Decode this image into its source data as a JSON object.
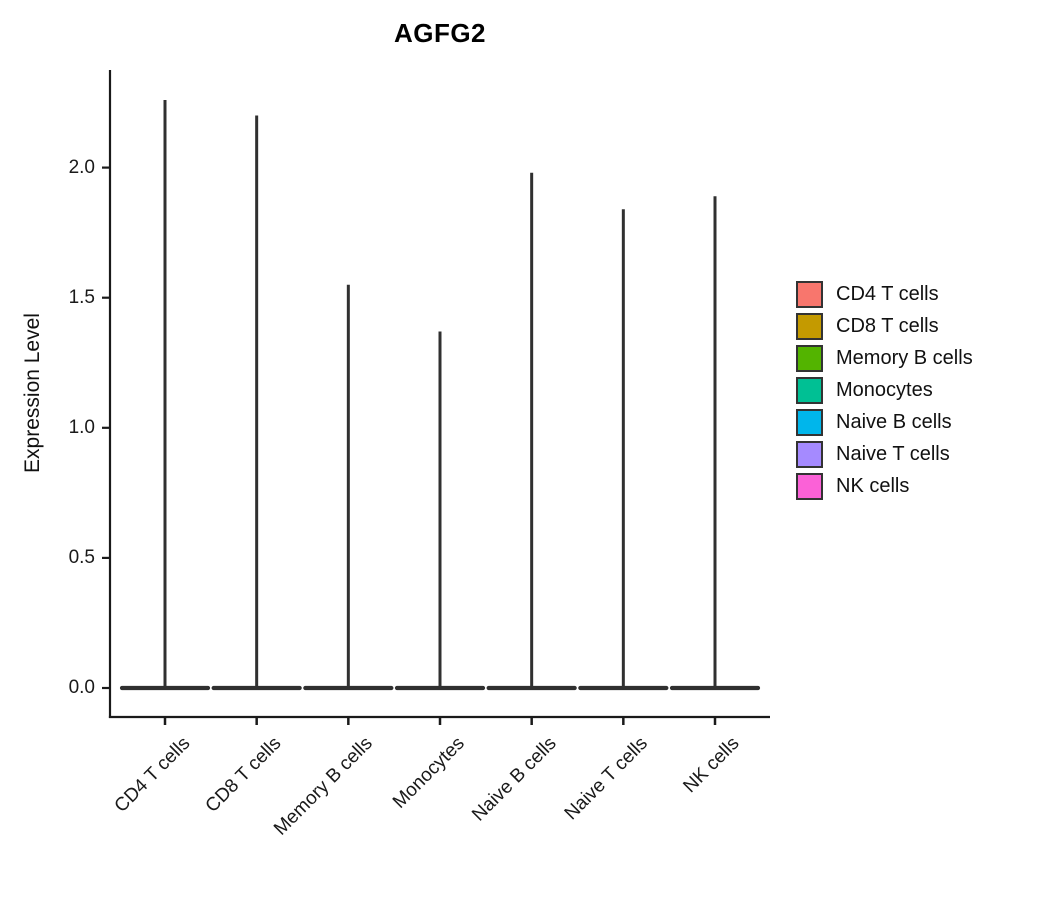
{
  "chart_data": {
    "type": "violin",
    "title": "AGFG2",
    "ylabel": "Expression Level",
    "xlabel": "",
    "ytick_labels": [
      "0.0",
      "0.5",
      "1.0",
      "1.5",
      "2.0"
    ],
    "ytick_values": [
      0.0,
      0.5,
      1.0,
      1.5,
      2.0
    ],
    "ylim": [
      0.0,
      2.38
    ],
    "grid": false,
    "legend_position": "right",
    "categories": [
      "CD4 T cells",
      "CD8 T cells",
      "Memory B cells",
      "Monocytes",
      "Naive B cells",
      "Naive T cells",
      "NK cells"
    ],
    "series": [
      {
        "name": "CD4 T cells",
        "color": "#F8766D",
        "min_expression": 0.0,
        "max_expression": 2.26
      },
      {
        "name": "CD8 T cells",
        "color": "#C49A00",
        "min_expression": 0.0,
        "max_expression": 2.2
      },
      {
        "name": "Memory B cells",
        "color": "#53B400",
        "min_expression": 0.0,
        "max_expression": 1.55
      },
      {
        "name": "Monocytes",
        "color": "#00C094",
        "min_expression": 0.0,
        "max_expression": 1.37
      },
      {
        "name": "Naive B cells",
        "color": "#00B6EB",
        "min_expression": 0.0,
        "max_expression": 1.98
      },
      {
        "name": "Naive T cells",
        "color": "#A58AFF",
        "min_expression": 0.0,
        "max_expression": 1.84
      },
      {
        "name": "NK cells",
        "color": "#FB61D7",
        "min_expression": 0.0,
        "max_expression": 1.89
      }
    ],
    "violin_outline_color": "#303030",
    "axis_color": "#1a1a1a",
    "text_color": "#1a1a1a",
    "background_color": "#ffffff"
  }
}
